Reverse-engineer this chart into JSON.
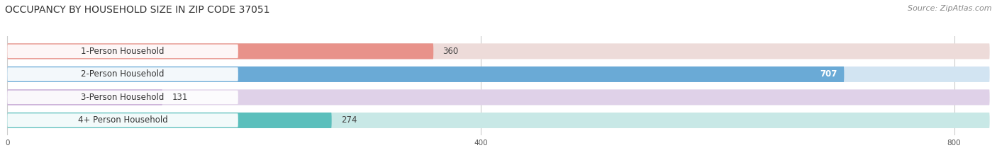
{
  "title": "OCCUPANCY BY HOUSEHOLD SIZE IN ZIP CODE 37051",
  "source": "Source: ZipAtlas.com",
  "categories": [
    "1-Person Household",
    "2-Person Household",
    "3-Person Household",
    "4+ Person Household"
  ],
  "values": [
    360,
    707,
    131,
    274
  ],
  "bar_colors": [
    "#e8928a",
    "#6aaad6",
    "#c5a8d4",
    "#5bbfbc"
  ],
  "bar_bg_colors": [
    "#eddbd9",
    "#d2e4f2",
    "#dfd1e8",
    "#c8e8e6"
  ],
  "xlim": [
    0,
    830
  ],
  "xticks": [
    0,
    400,
    800
  ],
  "figsize": [
    14.06,
    2.33
  ],
  "dpi": 100,
  "title_fontsize": 10,
  "label_fontsize": 8.5,
  "value_fontsize": 8.5,
  "source_fontsize": 8,
  "background_color": "#ffffff"
}
